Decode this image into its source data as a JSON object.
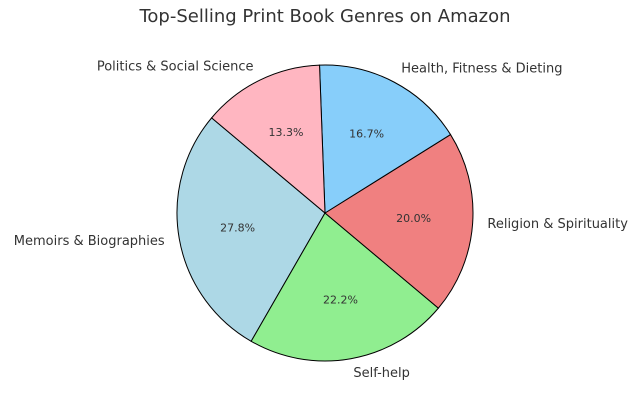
{
  "chart_data": {
    "type": "pie",
    "title": "Top-Selling Print Book Genres on Amazon",
    "categories": [
      "Memoirs & Biographies",
      "Self-help",
      "Religion & Spirituality",
      "Health, Fitness & Dieting",
      "Politics & Social Science"
    ],
    "values": [
      27.8,
      22.2,
      20.0,
      16.7,
      13.3
    ],
    "value_labels": [
      "27.8%",
      "22.2%",
      "20.0%",
      "16.7%",
      "13.3%"
    ],
    "colors": [
      "#add8e6",
      "#90ee90",
      "#f08080",
      "#87cefa",
      "#ffb6c1"
    ],
    "start_angle": 140
  }
}
